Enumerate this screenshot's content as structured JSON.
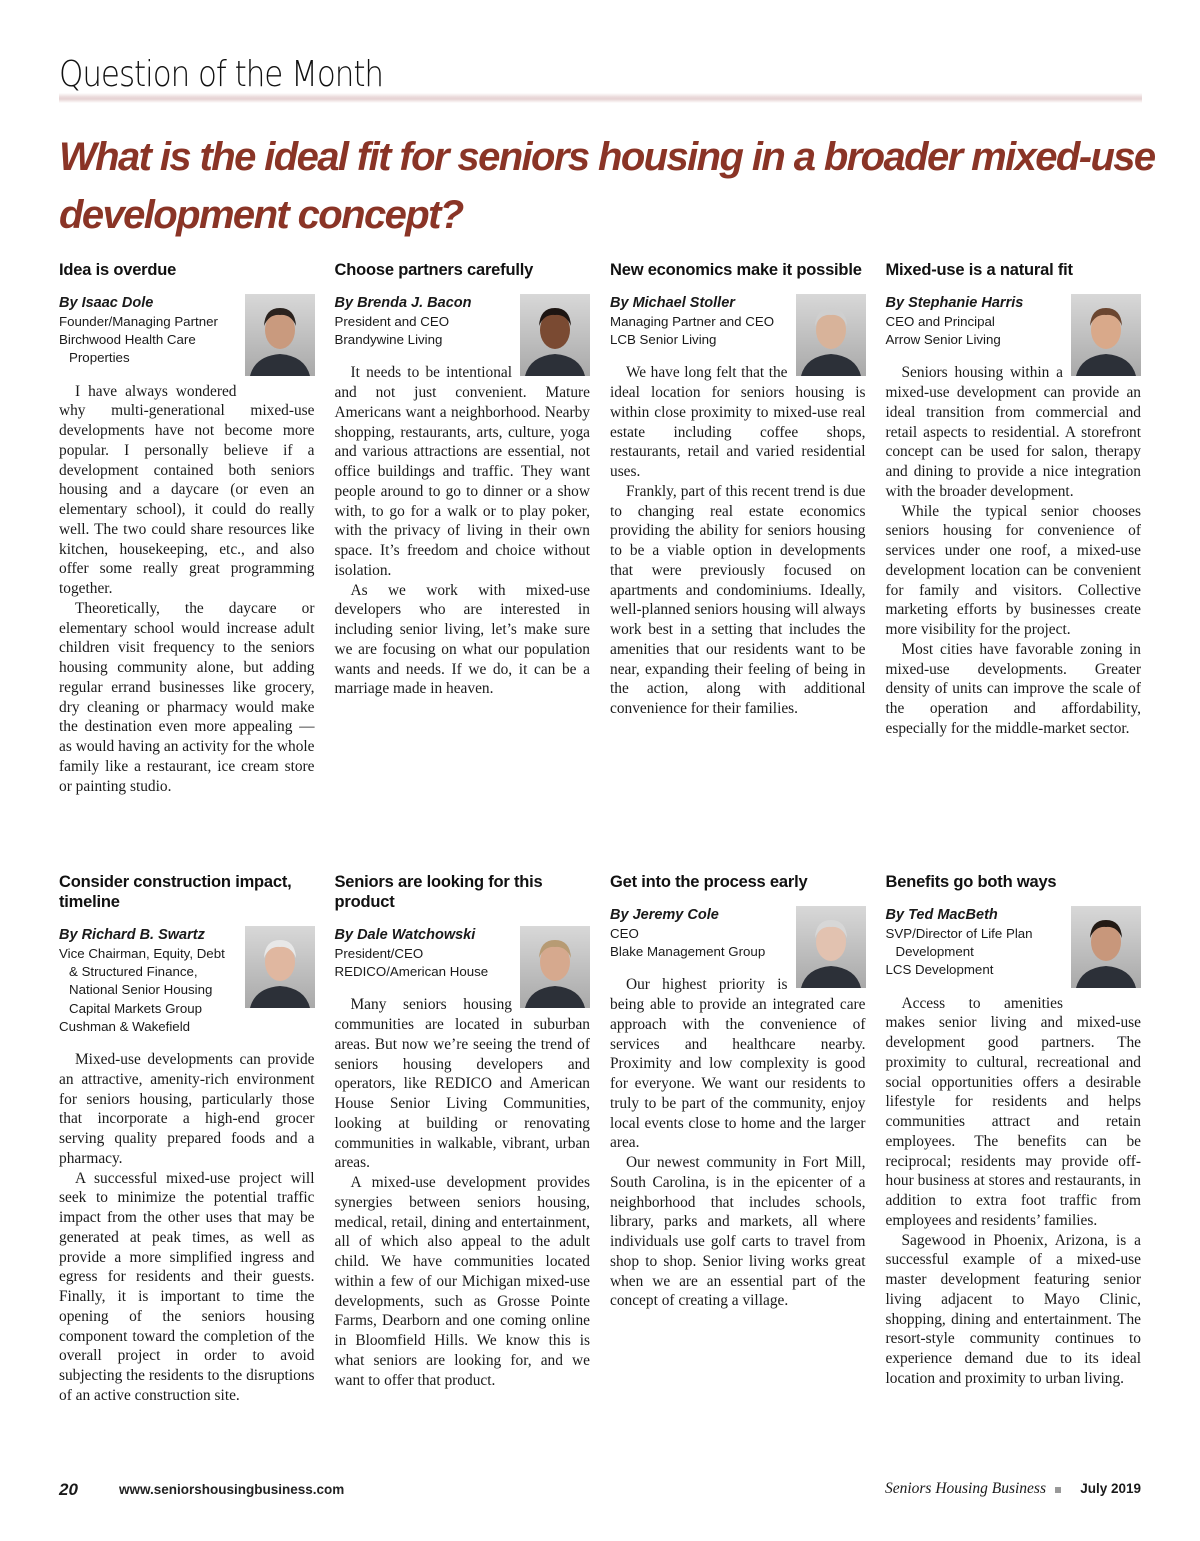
{
  "header": {
    "section": "Question of the Month",
    "headline": "What is the ideal fit for seniors housing in a broader mixed-use development concept?"
  },
  "articles": [
    {
      "heading": "Idea is overdue",
      "byline": "By Isaac Dole",
      "roles": [
        "Founder/Managing Partner",
        "Birchwood Health Care",
        "Properties"
      ],
      "paragraphs": [
        "I have always wondered why multi-generational mixed-use developments have not become more popular. I personally believe if a development contained both seniors housing and a daycare (or even an elementary school), it could do really well. The two could share resources like kitchen, housekeeping, etc., and also offer some really great programming together.",
        "Theoretically, the daycare or elementary school would increase adult children visit frequency to the seniors housing community alone, but adding regular errand businesses like grocery, dry cleaning or pharmacy would make the destination even more appealing — as would having an activity for the whole family like a restaurant, ice cream store or painting studio."
      ]
    },
    {
      "heading": "Choose partners carefully",
      "byline": "By Brenda J. Bacon",
      "roles": [
        "President and CEO",
        "Brandywine Living"
      ],
      "paragraphs": [
        "It needs to be intentional and not just convenient. Mature Americans want a neighborhood. Nearby shopping, restaurants, arts, culture, yoga and various attractions are essential, not office buildings and traffic. They want people around to go to dinner or a show with, to go for a walk or to play poker, with the privacy of living in their own space. It’s freedom and choice without isolation.",
        "As we work with mixed-use developers who are interested in including senior living, let’s make sure we are focusing on what our population wants and needs. If we do, it can be a marriage made in heaven."
      ]
    },
    {
      "heading": "New economics make it possible",
      "byline": "By Michael Stoller",
      "roles": [
        "Managing Partner and CEO",
        "LCB Senior Living"
      ],
      "paragraphs": [
        "We have long felt that the ideal location for seniors housing is within close proximity to mixed-use real estate including coffee shops, restaurants, retail and varied residential uses.",
        "Frankly, part of this recent trend is due to changing real estate economics providing the ability for seniors housing to be a viable option in developments that were previously focused on apartments and condominiums. Ideally, well-planned seniors housing will always work best in a setting that includes the amenities that our residents want to be near, expanding their feeling of being in the action, along with additional convenience for their families."
      ]
    },
    {
      "heading": "Mixed-use is a natural fit",
      "byline": "By Stephanie Harris",
      "roles": [
        "CEO and Principal",
        "Arrow Senior Living"
      ],
      "paragraphs": [
        "Seniors housing within a mixed-use development can provide an ideal transition from commercial and retail aspects to residential. A storefront concept can be used for salon, therapy and dining to provide a nice integration with the broader development.",
        "While the typical senior chooses seniors housing for convenience of services under one roof, a mixed-use development location can be convenient for family and visitors. Collective marketing efforts by businesses create more visibility for the project.",
        "Most cities have favorable zoning in mixed-use developments. Greater density of units can improve the scale of the operation and affordability, especially for the middle-market sector."
      ]
    },
    {
      "heading": "Consider construction impact, timeline",
      "byline": "By Richard B. Swartz",
      "roles": [
        "Vice Chairman, Equity, Debt",
        "& Structured Finance,",
        "National Senior Housing",
        "Capital Markets Group",
        "Cushman & Wakefield"
      ],
      "paragraphs": [
        "Mixed-use developments can provide an attractive, amenity-rich environment for seniors housing, particularly those that incorporate a high-end grocer serving quality prepared foods and a pharmacy.",
        "A successful mixed-use project will seek to minimize the potential traffic impact from the other uses that may be generated at peak times, as well as provide a more simplified ingress and egress for residents and their guests. Finally, it is important to time the opening of the seniors housing component toward the completion of the overall project in order to avoid subjecting the residents to the disruptions of an active construction site."
      ]
    },
    {
      "heading": "Seniors are looking for this product",
      "byline": "By Dale Watchowski",
      "roles": [
        "President/CEO",
        "REDICO/American House"
      ],
      "paragraphs": [
        "Many seniors housing communities are located in suburban areas. But now we’re seeing the trend of seniors housing developers and operators, like REDICO and American House Senior Living Communities, looking at building or renovating communities in walkable, vibrant, urban areas.",
        "A mixed-use development provides synergies between seniors housing, medical, retail, dining and entertainment, all of which also appeal to the adult child. We have communities located within a few of our Michigan mixed-use developments, such as Grosse Pointe Farms, Dearborn and one coming online in Bloomfield Hills. We know this is what seniors are looking for, and we want to offer that product."
      ]
    },
    {
      "heading": "Get into the process early",
      "byline": "By Jeremy Cole",
      "roles": [
        "CEO",
        "Blake Management Group"
      ],
      "paragraphs": [
        "Our highest priority is being able to provide an integrated care approach with the convenience of services and healthcare nearby. Proximity and low complexity is good for everyone. We want our residents to truly to be part of the community, enjoy local events close to home and the larger area.",
        "Our newest community in Fort Mill, South Carolina, is in the epicenter of a neighborhood that includes schools, library, parks and markets, all where individuals use golf carts to travel from shop to shop. Senior living works great when we are an essential part of the concept of creating a village."
      ]
    },
    {
      "heading": "Benefits go both ways",
      "byline": "By Ted MacBeth",
      "roles": [
        "SVP/Director of Life Plan",
        "Development",
        "LCS Development"
      ],
      "paragraphs": [
        "Access to amenities makes senior living and mixed-use development good partners. The proximity to cultural, recreational and social opportunities offers a desirable lifestyle for residents and helps communities attract and retain employees. The benefits can be reciprocal; residents may provide off-hour business at stores and restaurants, in addition to extra foot traffic from employees and residents’ families.",
        "Sagewood in Phoenix, Arizona, is a successful example of a mixed-use master development featuring senior living adjacent to Mayo Clinic, shopping, dining and entertainment. The resort-style community continues to experience demand due to its ideal location and proximity to urban living."
      ]
    }
  ],
  "footer": {
    "page": "20",
    "url": "www.seniorshousingbusiness.com",
    "magazine": "Seniors Housing Business",
    "date": "July 2019"
  },
  "colors": {
    "headline": "#8a3426",
    "rule": "#e6d2d3"
  }
}
